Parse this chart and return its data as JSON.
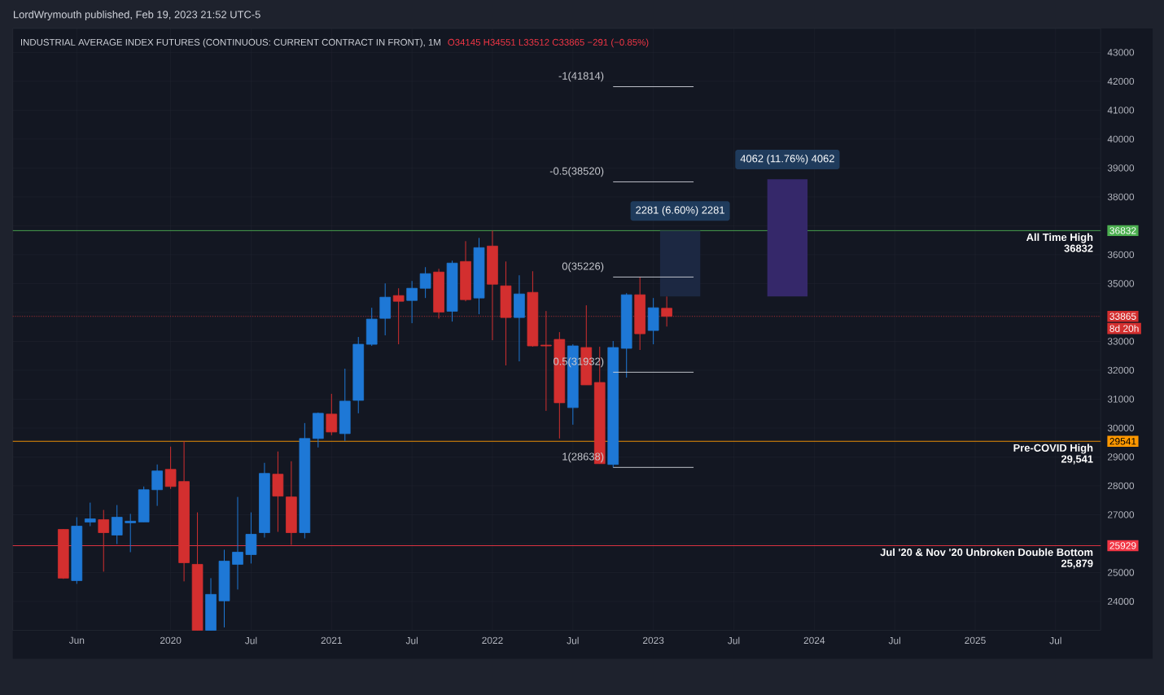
{
  "chart_data": {
    "type": "candlestick",
    "title": "INDUSTRIAL AVERAGE INDEX FUTURES (CONTINUOUS: CURRENT CONTRACT IN FRONT), 1M",
    "subtitle": "O34145 H34551 L33512 C33865 −291 (−0.85%)",
    "x": [
      "2019-05",
      "2019-06",
      "2019-07",
      "2019-08",
      "2019-09",
      "2019-10",
      "2019-11",
      "2019-12",
      "2020-01",
      "2020-02",
      "2020-03",
      "2020-04",
      "2020-05",
      "2020-06",
      "2020-07",
      "2020-08",
      "2020-09",
      "2020-10",
      "2020-11",
      "2020-12",
      "2021-01",
      "2021-02",
      "2021-03",
      "2021-04",
      "2021-05",
      "2021-06",
      "2021-07",
      "2021-08",
      "2021-09",
      "2021-10",
      "2021-11",
      "2021-12",
      "2022-01",
      "2022-02",
      "2022-03",
      "2022-04",
      "2022-05",
      "2022-06",
      "2022-07",
      "2022-08",
      "2022-09",
      "2022-10",
      "2022-11",
      "2022-12",
      "2023-01",
      "2023-02"
    ],
    "ohlc": [
      [
        26491,
        26500,
        24780,
        24805
      ],
      [
        24721,
        26913,
        24608,
        26604
      ],
      [
        26744,
        27419,
        26604,
        26856
      ],
      [
        26828,
        27166,
        25030,
        26379
      ],
      [
        26295,
        27334,
        25985,
        26913
      ],
      [
        26721,
        27030,
        25704,
        26777
      ],
      [
        26749,
        27977,
        26749,
        27865
      ],
      [
        27865,
        28739,
        27306,
        28514
      ],
      [
        28570,
        29357,
        27893,
        27977
      ],
      [
        28149,
        29541,
        24693,
        25339
      ],
      [
        25283,
        27081,
        23000,
        23000
      ],
      [
        23000,
        24805,
        23000,
        24243
      ],
      [
        24019,
        25788,
        23100,
        25395
      ],
      [
        25283,
        27615,
        24412,
        25704
      ],
      [
        25620,
        27081,
        25311,
        26323
      ],
      [
        26379,
        28795,
        26210,
        28430
      ],
      [
        28402,
        29189,
        26407,
        27643
      ],
      [
        27615,
        28851,
        25957,
        26379
      ],
      [
        26379,
        30172,
        26182,
        29638
      ],
      [
        29638,
        30538,
        29329,
        30510
      ],
      [
        30482,
        31184,
        29751,
        29863
      ],
      [
        29807,
        32055,
        29554,
        30931
      ],
      [
        30959,
        33151,
        30510,
        32898
      ],
      [
        32898,
        34162,
        32842,
        33769
      ],
      [
        33797,
        35006,
        33207,
        34528
      ],
      [
        34584,
        34837,
        32898,
        34387
      ],
      [
        34415,
        35090,
        33629,
        34837
      ],
      [
        34837,
        35568,
        34500,
        35343
      ],
      [
        35399,
        35511,
        33788,
        34013
      ],
      [
        34041,
        35792,
        33684,
        35708
      ],
      [
        35764,
        36467,
        34387,
        34443
      ],
      [
        34500,
        36579,
        33938,
        36242
      ],
      [
        36298,
        36832,
        33039,
        34977
      ],
      [
        34921,
        35764,
        32167,
        33825
      ],
      [
        33825,
        35287,
        32308,
        34640
      ],
      [
        34696,
        35427,
        32814,
        32842
      ],
      [
        32870,
        34050,
        30594,
        32842
      ],
      [
        33067,
        33320,
        29638,
        30875
      ],
      [
        30707,
        32898,
        30116,
        32842
      ],
      [
        32786,
        34247,
        31493,
        31493
      ],
      [
        31577,
        32814,
        28767,
        28767
      ],
      [
        28739,
        33011,
        28638,
        32786
      ],
      [
        32758,
        34668,
        31746,
        34612
      ],
      [
        34612,
        35226,
        32702,
        33263
      ],
      [
        33376,
        34500,
        32898,
        34162
      ],
      [
        34145,
        34551,
        33512,
        33865
      ]
    ],
    "colors": [
      "#d32f2f",
      "#1e78d6",
      "#1e78d6",
      "#d32f2f",
      "#1e78d6",
      "#1e78d6",
      "#1e78d6",
      "#1e78d6",
      "#d32f2f",
      "#d32f2f",
      "#d32f2f",
      "#1e78d6",
      "#1e78d6",
      "#1e78d6",
      "#1e78d6",
      "#1e78d6",
      "#d32f2f",
      "#d32f2f",
      "#1e78d6",
      "#1e78d6",
      "#d32f2f",
      "#1e78d6",
      "#1e78d6",
      "#1e78d6",
      "#1e78d6",
      "#d32f2f",
      "#1e78d6",
      "#1e78d6",
      "#d32f2f",
      "#1e78d6",
      "#d32f2f",
      "#1e78d6",
      "#d32f2f",
      "#d32f2f",
      "#1e78d6",
      "#d32f2f",
      "#d32f2f",
      "#d32f2f",
      "#1e78d6",
      "#d32f2f",
      "#d32f2f",
      "#1e78d6",
      "#1e78d6",
      "#d32f2f",
      "#1e78d6",
      "#d32f2f"
    ],
    "series": [
      {
        "type": "bar",
        "x": [
          "2023-03"
        ],
        "base": [
          34551
        ],
        "values": [
          2281
        ],
        "value_labels": [
          "2281 (6.60%) 2281"
        ],
        "color": "#1c2842"
      },
      {
        "type": "bar",
        "x": [
          "2023-11"
        ],
        "base": [
          34551
        ],
        "values": [
          4062
        ],
        "value_labels": [
          "4062 (11.76%) 4062"
        ],
        "color": "#35286a"
      },
      {
        "type": "line",
        "name": "-1(41814)",
        "x": [
          "2022-10",
          "2023-04"
        ],
        "values": [
          41814,
          41814
        ],
        "color": "#d1d4dc"
      },
      {
        "type": "line",
        "name": "-0.5(38520)",
        "x": [
          "2022-10",
          "2023-04"
        ],
        "values": [
          38520,
          38520
        ],
        "color": "#d1d4dc"
      },
      {
        "type": "line",
        "name": "0(35226)",
        "x": [
          "2022-10",
          "2023-04"
        ],
        "values": [
          35226,
          35226
        ],
        "color": "#d1d4dc"
      },
      {
        "type": "line",
        "name": "0.5(31932)",
        "x": [
          "2022-10",
          "2023-04"
        ],
        "values": [
          31932,
          31932
        ],
        "color": "#d1d4dc"
      },
      {
        "type": "line",
        "name": "1(28638)",
        "x": [
          "2022-10",
          "2023-04"
        ],
        "values": [
          28638,
          28638
        ],
        "color": "#d1d4dc"
      }
    ],
    "xlim": [
      "2019-01-08",
      "2025-10-12"
    ],
    "ylim": [
      23000,
      43830
    ],
    "xticks": [
      {
        "value": "2019-06",
        "label": "Jun"
      },
      {
        "value": "2020-01",
        "label": "2020"
      },
      {
        "value": "2020-07",
        "label": "Jul"
      },
      {
        "value": "2021-01",
        "label": "2021"
      },
      {
        "value": "2021-07",
        "label": "Jul"
      },
      {
        "value": "2022-01",
        "label": "2022"
      },
      {
        "value": "2022-07",
        "label": "Jul"
      },
      {
        "value": "2023-01",
        "label": "2023"
      },
      {
        "value": "2023-07",
        "label": "Jul"
      },
      {
        "value": "2024-01",
        "label": "2024"
      },
      {
        "value": "2024-07",
        "label": "Jul"
      },
      {
        "value": "2025-01",
        "label": "2025"
      },
      {
        "value": "2025-07",
        "label": "Jul"
      }
    ],
    "yticks": [
      24000,
      25000,
      25929,
      {
        "value": 26000,
        "label": null
      },
      27000,
      28000,
      29000,
      29541,
      30000,
      31000,
      32000,
      33000,
      33865,
      {
        "value": 34000,
        "label": null
      },
      35000,
      36000,
      36832,
      {
        "value": 37000,
        "label": null
      },
      38000,
      39000,
      40000,
      41000,
      42000,
      43000
    ],
    "grid": true,
    "ref_lines": [
      {
        "axis": "y",
        "value": 36832,
        "label": "All Time High",
        "color": "#4caf50"
      },
      {
        "axis": "y",
        "value": 29541,
        "label": "Pre-COVID High",
        "color": "#ff9800"
      },
      {
        "axis": "y",
        "value": 25929,
        "label": "Jul '20 & Nov '20 Unbroken Double Bottom",
        "color": "#f23645"
      },
      {
        "axis": "y",
        "value": 33865,
        "color": "#d32f2f",
        "line_style": "dotted"
      }
    ],
    "annotations": [
      "LordWrymouth published, Feb 19, 2023 21:52 UTC-5",
      "8d 20h",
      {
        "text": "36832",
        "x": "2025-10-12",
        "y": 36832
      },
      {
        "text": "29,541",
        "x": "2025-10-12",
        "y": 29541
      },
      {
        "text": "25,879",
        "x": "2025-10-12",
        "y": 25929
      }
    ]
  }
}
